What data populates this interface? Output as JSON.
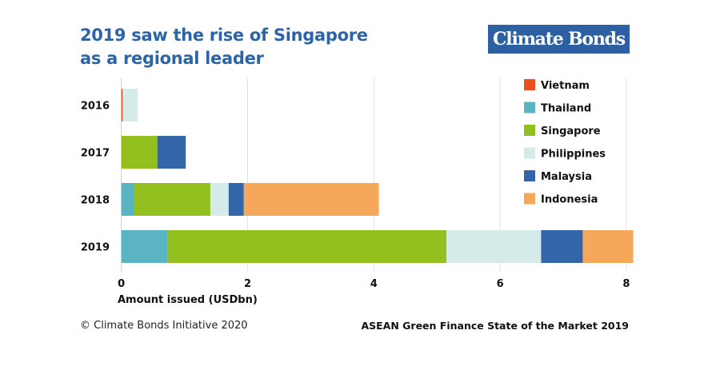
{
  "title_line1": "2019 saw the rise of Singapore",
  "title_line2": "as a regional leader",
  "logo_text": "Climate Bonds Initiative",
  "footer": {
    "copyright": "© Climate Bonds Initiative 2020",
    "source": "ASEAN Green Finance State of the Market 2019"
  },
  "chart_data": {
    "type": "bar",
    "orientation": "horizontal",
    "stacked": true,
    "categories": [
      "2016",
      "2017",
      "2018",
      "2019"
    ],
    "xlabel": "Amount issued (USDbn)",
    "xlim": [
      0,
      8.1
    ],
    "xticks": [
      0,
      2,
      4,
      6,
      8
    ],
    "grid": true,
    "legend": "top-right",
    "series": [
      {
        "name": "Vietnam",
        "color": "#e8501e",
        "values": [
          0.02,
          0,
          0,
          0
        ]
      },
      {
        "name": "Thailand",
        "color": "#5ab4c2",
        "values": [
          0,
          0,
          0.2,
          0.73
        ]
      },
      {
        "name": "Singapore",
        "color": "#93c01f",
        "values": [
          0,
          0.57,
          1.21,
          4.42
        ]
      },
      {
        "name": "Philippines",
        "color": "#d5ebe9",
        "values": [
          0.24,
          0,
          0.29,
          1.5
        ]
      },
      {
        "name": "Malaysia",
        "color": "#3366a8",
        "values": [
          0,
          0.45,
          0.24,
          0.66
        ]
      },
      {
        "name": "Indonesia",
        "color": "#f5a85a",
        "values": [
          0,
          0,
          2.14,
          0.8
        ]
      }
    ]
  }
}
